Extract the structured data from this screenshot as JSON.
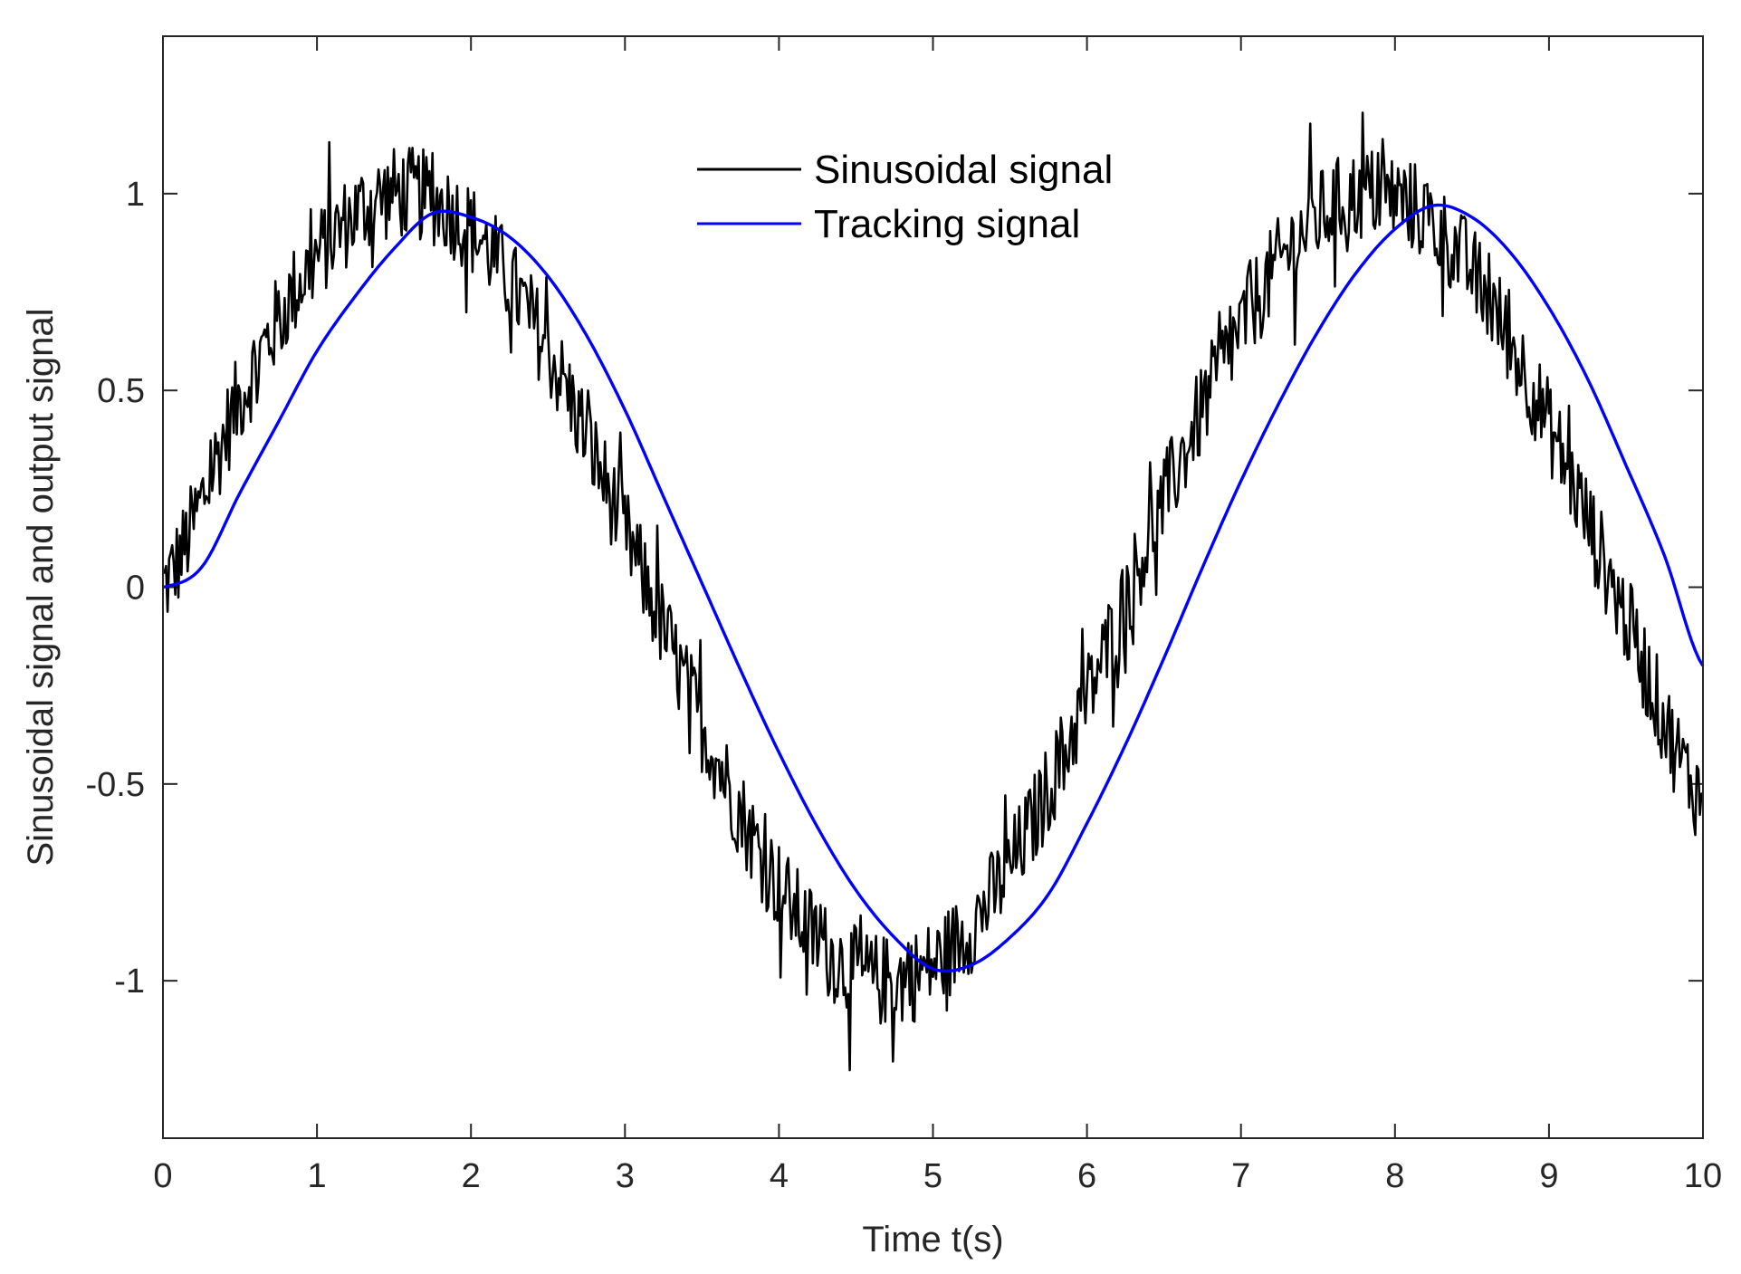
{
  "chart_data": {
    "type": "line",
    "title": "",
    "xlabel": "Time t(s)",
    "ylabel": "Sinusoidal signal and output signal",
    "xlim": [
      0,
      10
    ],
    "ylim": [
      -1.4,
      1.4
    ],
    "grid": false,
    "legend_position": "top-center",
    "xticks": [
      0,
      1,
      2,
      3,
      4,
      5,
      6,
      7,
      8,
      9,
      10
    ],
    "xtick_labels": [
      "0",
      "1",
      "2",
      "3",
      "4",
      "5",
      "6",
      "7",
      "8",
      "9",
      "10"
    ],
    "yticks": [
      -1,
      -0.5,
      0,
      0.5,
      1
    ],
    "ytick_labels": [
      "-1",
      "-0.5",
      "0",
      "0.5",
      "1"
    ],
    "series": [
      {
        "name": "Sinusoidal signal",
        "color": "#000000",
        "kind": "noisy",
        "x": [
          0,
          0.5,
          1,
          1.5,
          2,
          2.5,
          3,
          3.5,
          4,
          4.5,
          5,
          5.5,
          6,
          6.5,
          7,
          7.5,
          8,
          8.5,
          9,
          9.5,
          10
        ],
        "y": [
          0,
          0.48,
          0.84,
          1.0,
          0.91,
          0.6,
          0.14,
          -0.35,
          -0.76,
          -0.98,
          -0.96,
          -0.71,
          -0.28,
          0.22,
          0.66,
          0.94,
          0.99,
          0.8,
          0.41,
          -0.08,
          -0.54
        ],
        "noise_amplitude": 0.12
      },
      {
        "name": "Tracking signal",
        "color": "#0000ff",
        "kind": "smooth",
        "x": [
          0,
          0.25,
          0.5,
          0.75,
          1,
          1.25,
          1.5,
          1.75,
          2,
          2.25,
          2.5,
          2.75,
          3,
          3.25,
          3.5,
          3.75,
          4,
          4.25,
          4.5,
          4.75,
          5,
          5.25,
          5.5,
          5.75,
          6,
          6.25,
          6.5,
          6.75,
          7,
          7.25,
          7.5,
          7.75,
          8,
          8.25,
          8.5,
          8.75,
          9,
          9.25,
          9.5,
          9.75,
          10
        ],
        "y": [
          0,
          0.05,
          0.24,
          0.42,
          0.6,
          0.74,
          0.86,
          0.95,
          0.94,
          0.89,
          0.79,
          0.64,
          0.45,
          0.23,
          0.01,
          -0.21,
          -0.42,
          -0.61,
          -0.77,
          -0.89,
          -0.97,
          -0.96,
          -0.89,
          -0.78,
          -0.6,
          -0.4,
          -0.18,
          0.05,
          0.27,
          0.47,
          0.65,
          0.8,
          0.91,
          0.97,
          0.94,
          0.85,
          0.71,
          0.53,
          0.31,
          0.08,
          -0.2
        ]
      }
    ]
  }
}
